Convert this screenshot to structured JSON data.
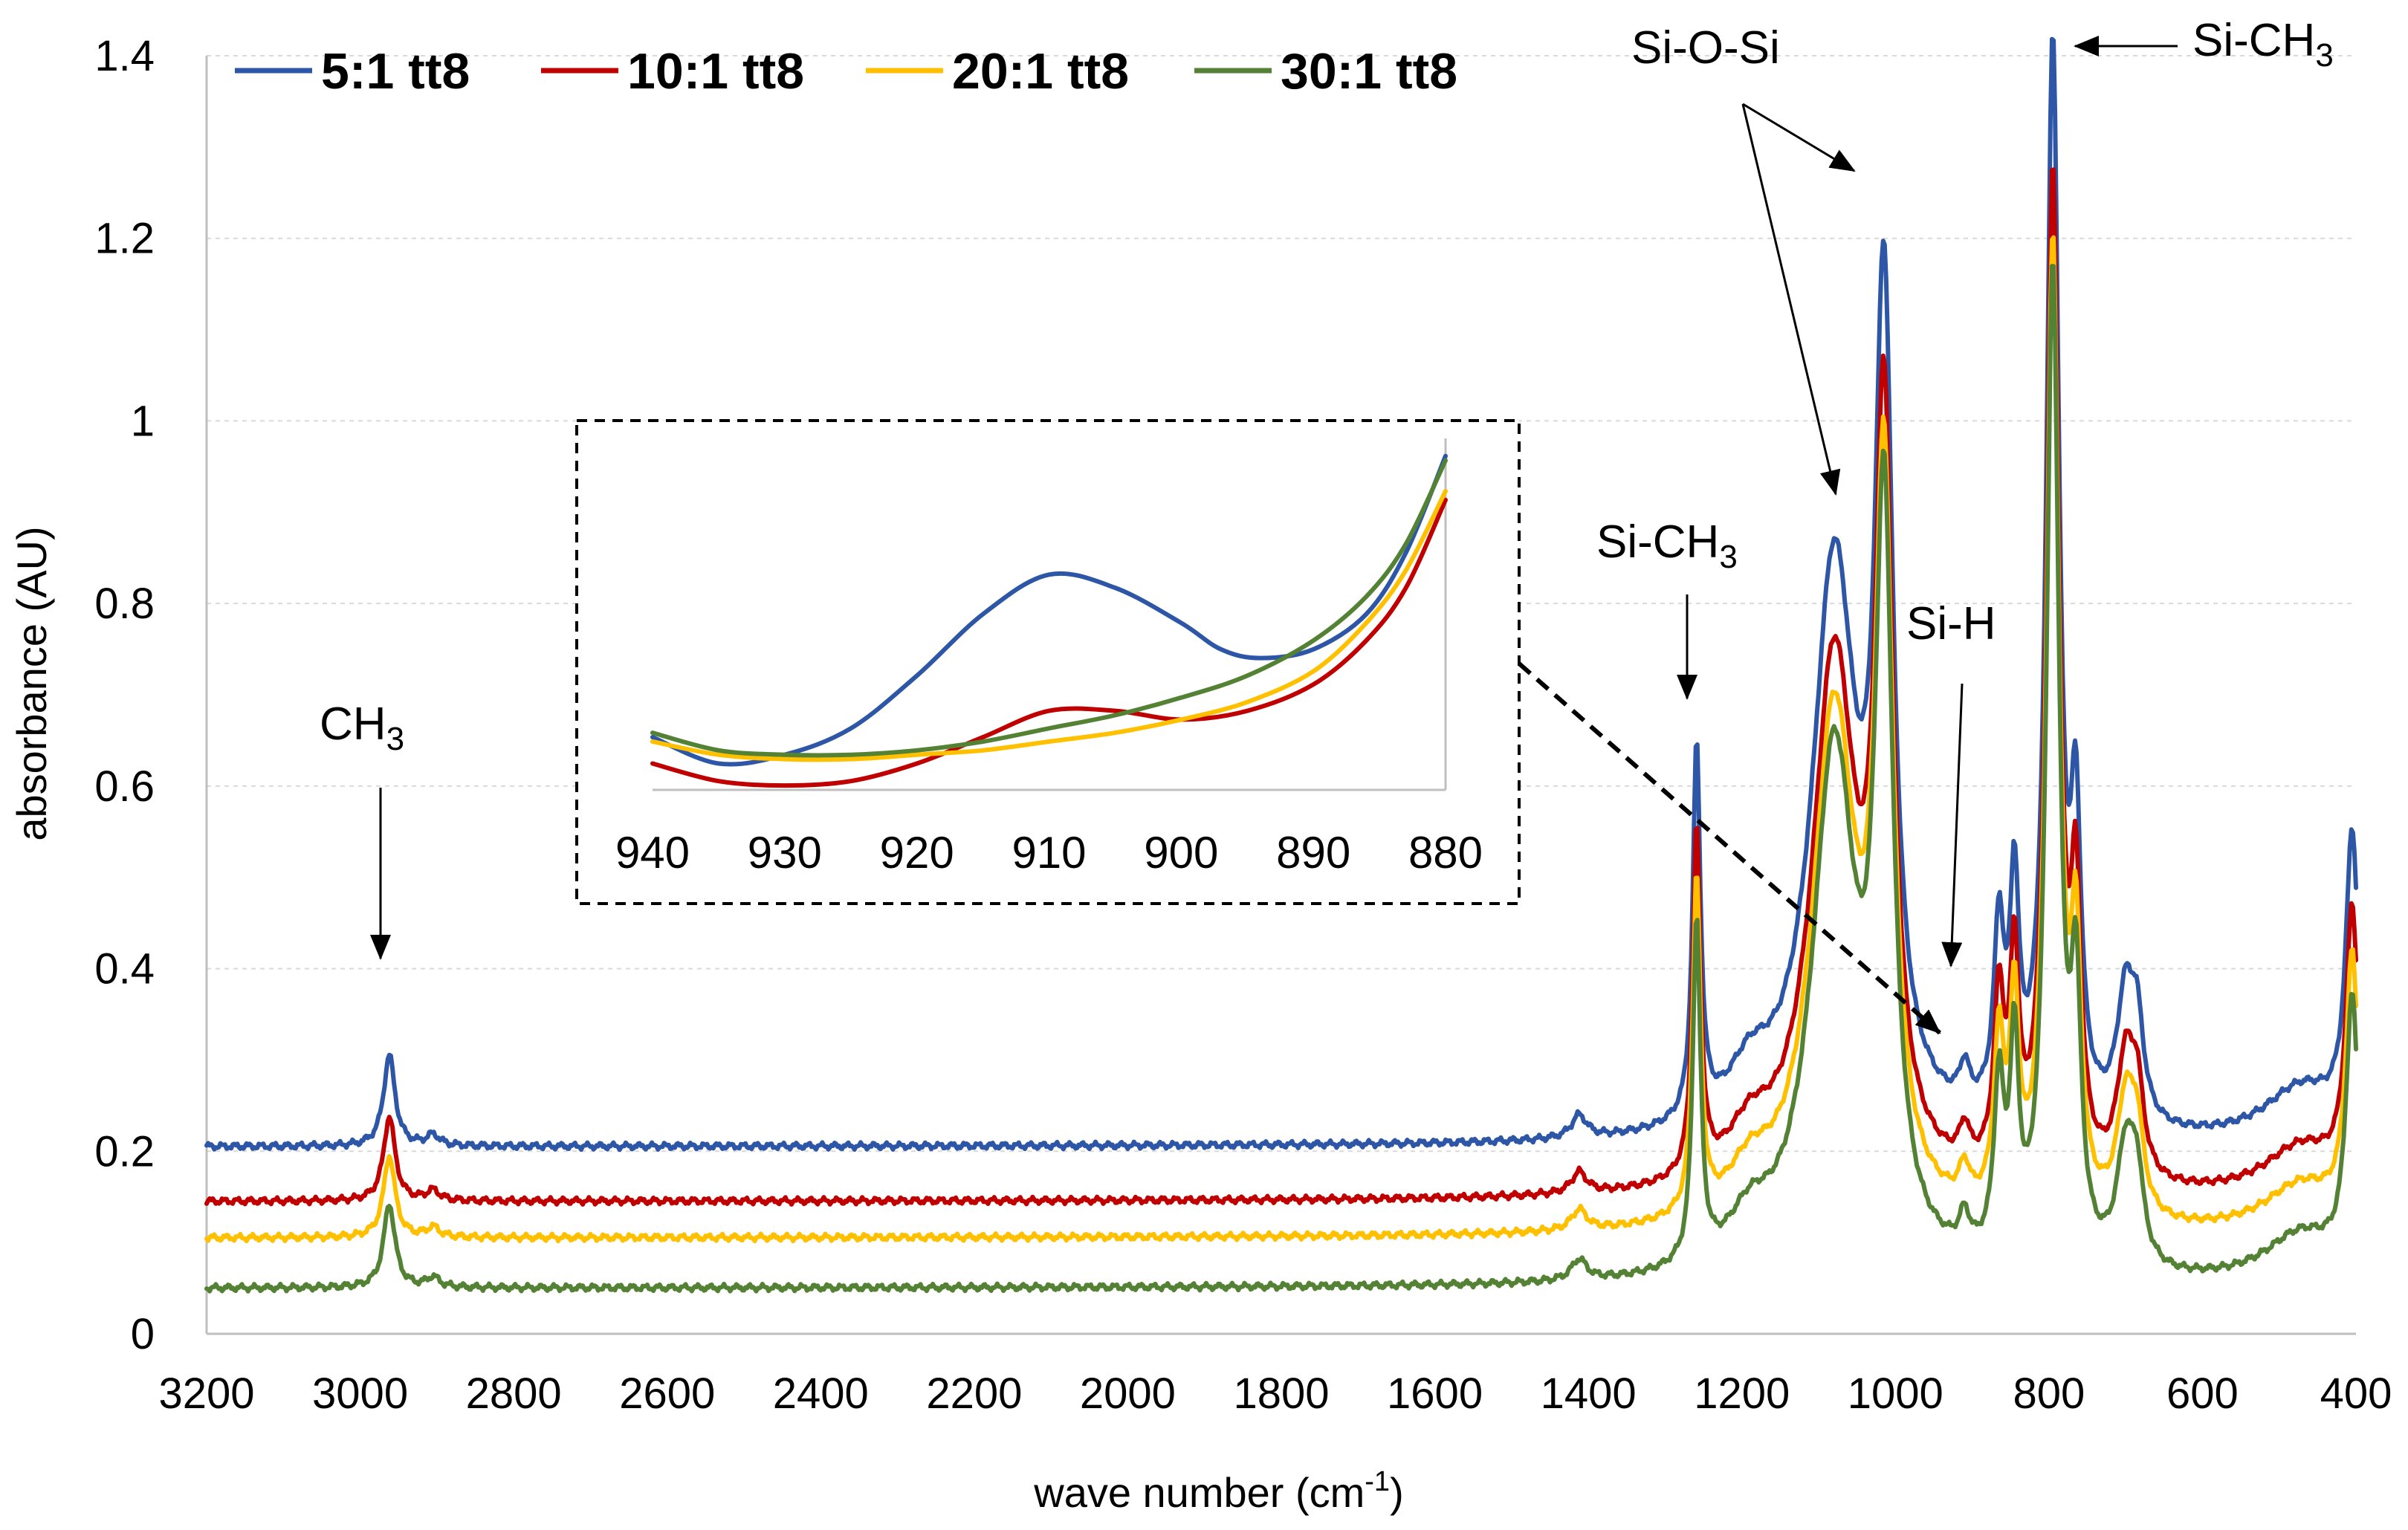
{
  "chart_data": {
    "type": "line",
    "title": "",
    "xlabel": "wave number (cm",
    "xlabel_sup": "-1",
    "xlabel_end": ")",
    "ylabel": "absorbance (AU)",
    "xlim": [
      3200,
      400
    ],
    "ylim": [
      0,
      1.4
    ],
    "x_ticks": [
      3200,
      3000,
      2800,
      2600,
      2400,
      2200,
      2000,
      1800,
      1600,
      1400,
      1200,
      1000,
      800,
      600,
      400
    ],
    "y_ticks": [
      0,
      0.2,
      0.4,
      0.6,
      0.8,
      1,
      1.2,
      1.4
    ],
    "y_tick_labels": [
      "0",
      "0.2",
      "0.4",
      "0.6",
      "0.8",
      "1",
      "1.2",
      "1.4"
    ],
    "grid": "horizontal dashed",
    "legend_position": "top-left",
    "series": [
      {
        "name": "5:1 tt8",
        "color": "#2e56a6",
        "offset": 0.205,
        "bump_scale": 1.0
      },
      {
        "name": "10:1 tt8",
        "color": "#c00000",
        "offset": 0.145,
        "bump_scale": 0.93
      },
      {
        "name": "20:1 tt8",
        "color": "#ffc000",
        "offset": 0.105,
        "bump_scale": 0.9
      },
      {
        "name": "30:1 tt8",
        "color": "#548235",
        "offset": 0.05,
        "bump_scale": 0.92
      }
    ],
    "peaks": [
      {
        "x": 2962,
        "h": 0.1,
        "w": 9
      },
      {
        "x": 2905,
        "h": 0.012,
        "w": 10
      },
      {
        "x": 1412,
        "h": 0.025,
        "w": 12
      },
      {
        "x": 1259,
        "h": 0.41,
        "w": 6
      },
      {
        "x": 1190,
        "h": 0.055,
        "w": 35
      },
      {
        "x": 1080,
        "h": 0.62,
        "w": 35
      },
      {
        "x": 1015,
        "h": 0.85,
        "w": 14
      },
      {
        "x": 910,
        "h": 0.04,
        "w": 8
      },
      {
        "x": 865,
        "h": 0.2,
        "w": 8
      },
      {
        "x": 845,
        "h": 0.24,
        "w": 7
      },
      {
        "x": 795,
        "h": 1.18,
        "w": 10
      },
      {
        "x": 765,
        "h": 0.3,
        "w": 8
      },
      {
        "x": 700,
        "h": 0.14,
        "w": 14
      },
      {
        "x": 685,
        "h": 0.09,
        "w": 10
      },
      {
        "x": 470,
        "h": 0.06,
        "w": 60
      },
      {
        "x": 405,
        "h": 0.32,
        "w": 10
      }
    ],
    "annotations": [
      {
        "label": "CH",
        "sub": "3"
      },
      {
        "label": "Si-CH",
        "sub": "3"
      },
      {
        "label": "Si-O-Si",
        "sub": ""
      },
      {
        "label": "Si-H",
        "sub": ""
      },
      {
        "label": "Si-CH",
        "sub": "3"
      }
    ],
    "inset": {
      "xlim": [
        940,
        880
      ],
      "x_ticks": [
        940,
        930,
        920,
        910,
        900,
        890,
        880
      ],
      "series": [
        {
          "name": "5:1 tt8",
          "color": "#2e56a6",
          "points": [
            [
              940,
              0.66
            ],
            [
              935,
              0.63
            ],
            [
              930,
              0.64
            ],
            [
              925,
              0.67
            ],
            [
              920,
              0.73
            ],
            [
              915,
              0.8
            ],
            [
              910,
              0.845
            ],
            [
              905,
              0.83
            ],
            [
              900,
              0.79
            ],
            [
              897,
              0.76
            ],
            [
              894,
              0.75
            ],
            [
              890,
              0.76
            ],
            [
              886,
              0.8
            ],
            [
              883,
              0.87
            ],
            [
              880,
              0.98
            ]
          ]
        },
        {
          "name": "10:1 tt8",
          "color": "#c00000",
          "points": [
            [
              940,
              0.63
            ],
            [
              935,
              0.61
            ],
            [
              930,
              0.605
            ],
            [
              925,
              0.61
            ],
            [
              920,
              0.63
            ],
            [
              915,
              0.66
            ],
            [
              910,
              0.69
            ],
            [
              905,
              0.69
            ],
            [
              900,
              0.68
            ],
            [
              895,
              0.69
            ],
            [
              890,
              0.72
            ],
            [
              886,
              0.77
            ],
            [
              883,
              0.83
            ],
            [
              880,
              0.93
            ]
          ]
        },
        {
          "name": "20:1 tt8",
          "color": "#ffc000",
          "points": [
            [
              940,
              0.655
            ],
            [
              935,
              0.64
            ],
            [
              930,
              0.635
            ],
            [
              925,
              0.635
            ],
            [
              920,
              0.64
            ],
            [
              915,
              0.645
            ],
            [
              910,
              0.655
            ],
            [
              905,
              0.665
            ],
            [
              900,
              0.68
            ],
            [
              895,
              0.7
            ],
            [
              890,
              0.735
            ],
            [
              886,
              0.79
            ],
            [
              883,
              0.85
            ],
            [
              880,
              0.94
            ]
          ]
        },
        {
          "name": "30:1 tt8",
          "color": "#548235",
          "points": [
            [
              940,
              0.665
            ],
            [
              935,
              0.645
            ],
            [
              930,
              0.64
            ],
            [
              925,
              0.64
            ],
            [
              920,
              0.645
            ],
            [
              915,
              0.655
            ],
            [
              910,
              0.67
            ],
            [
              905,
              0.685
            ],
            [
              900,
              0.705
            ],
            [
              895,
              0.73
            ],
            [
              890,
              0.77
            ],
            [
              886,
              0.82
            ],
            [
              883,
              0.88
            ],
            [
              880,
              0.975
            ]
          ]
        }
      ]
    }
  }
}
